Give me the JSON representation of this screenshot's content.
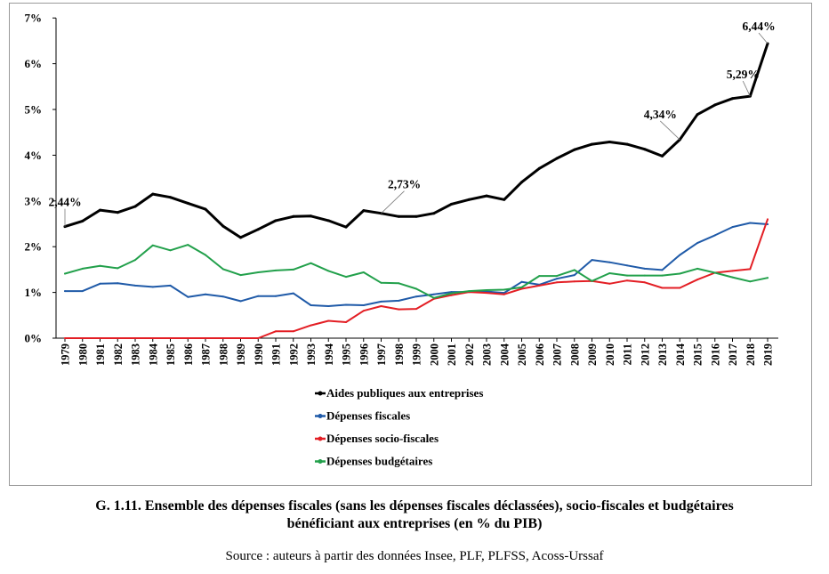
{
  "caption": {
    "line1": "G. 1.11. Ensemble des dépenses fiscales (sans les dépenses fiscales déclassées), socio-fiscales et budgétaires",
    "line2": "bénéficiant aux entreprises (en % du PIB)"
  },
  "source": "Source : auteurs à partir des données Insee, PLF, PLFSS, Acoss-Urssaf",
  "chart_data": {
    "type": "line",
    "title": "",
    "xlabel": "",
    "ylabel": "",
    "ylim": [
      0,
      7
    ],
    "yticks": [
      "0%",
      "1%",
      "2%",
      "3%",
      "4%",
      "5%",
      "6%",
      "7%"
    ],
    "grid": false,
    "legend_position": "bottom-left",
    "categories": [
      "1979",
      "1980",
      "1981",
      "1982",
      "1983",
      "1984",
      "1985",
      "1986",
      "1987",
      "1988",
      "1989",
      "1990",
      "1991",
      "1992",
      "1993",
      "1994",
      "1995",
      "1996",
      "1997",
      "1998",
      "1999",
      "2000",
      "2001",
      "2002",
      "2003",
      "2004",
      "2005",
      "2006",
      "2007",
      "2008",
      "2009",
      "2010",
      "2011",
      "2012",
      "2013",
      "2014",
      "2015",
      "2016",
      "2017",
      "2018",
      "2019"
    ],
    "series": [
      {
        "name": "Aides publiques aux entreprises",
        "color": "#000000",
        "stroke_width": 3,
        "values": [
          2.44,
          2.56,
          2.8,
          2.75,
          2.88,
          3.15,
          3.08,
          2.95,
          2.82,
          2.45,
          2.2,
          2.38,
          2.57,
          2.66,
          2.67,
          2.57,
          2.43,
          2.79,
          2.73,
          2.66,
          2.66,
          2.73,
          2.93,
          3.03,
          3.11,
          3.03,
          3.41,
          3.71,
          3.93,
          4.12,
          4.24,
          4.29,
          4.24,
          4.13,
          3.98,
          4.34,
          4.89,
          5.1,
          5.24,
          5.29,
          6.44
        ]
      },
      {
        "name": "Dépenses fiscales",
        "color": "#1f5aa8",
        "stroke_width": 2,
        "values": [
          1.03,
          1.03,
          1.19,
          1.2,
          1.15,
          1.12,
          1.15,
          0.9,
          0.96,
          0.91,
          0.81,
          0.92,
          0.92,
          0.98,
          0.72,
          0.7,
          0.73,
          0.72,
          0.8,
          0.82,
          0.91,
          0.96,
          1.01,
          1.01,
          1.02,
          0.99,
          1.23,
          1.17,
          1.3,
          1.38,
          1.71,
          1.66,
          1.59,
          1.52,
          1.49,
          1.82,
          2.08,
          2.25,
          2.43,
          2.52,
          2.49
        ]
      },
      {
        "name": "Dépenses socio-fiscales",
        "color": "#e31e24",
        "stroke_width": 2,
        "values": [
          0,
          0,
          0,
          0,
          0,
          0,
          0,
          0,
          0,
          0,
          0,
          0,
          0.15,
          0.15,
          0.28,
          0.38,
          0.35,
          0.6,
          0.7,
          0.63,
          0.64,
          0.86,
          0.94,
          1.01,
          0.99,
          0.96,
          1.08,
          1.15,
          1.22,
          1.24,
          1.25,
          1.19,
          1.26,
          1.22,
          1.1,
          1.1,
          1.28,
          1.43,
          1.47,
          1.51,
          2.6
        ]
      },
      {
        "name": "Dépenses budgétaires",
        "color": "#22a04b",
        "stroke_width": 2,
        "values": [
          1.41,
          1.52,
          1.58,
          1.53,
          1.71,
          2.03,
          1.92,
          2.04,
          1.82,
          1.51,
          1.38,
          1.44,
          1.48,
          1.5,
          1.64,
          1.47,
          1.34,
          1.44,
          1.21,
          1.2,
          1.08,
          0.88,
          0.98,
          1.03,
          1.05,
          1.06,
          1.11,
          1.36,
          1.36,
          1.49,
          1.25,
          1.42,
          1.37,
          1.37,
          1.37,
          1.41,
          1.52,
          1.43,
          1.33,
          1.24,
          1.32
        ]
      }
    ],
    "annotations": [
      {
        "label": "2,44%",
        "year": "1979",
        "value": 2.44
      },
      {
        "label": "2,73%",
        "year": "1997",
        "value": 2.73
      },
      {
        "label": "4,34%",
        "year": "2014",
        "value": 4.34
      },
      {
        "label": "5,29%",
        "year": "2018",
        "value": 5.29
      },
      {
        "label": "6,44%",
        "year": "2019",
        "value": 6.44
      }
    ]
  }
}
